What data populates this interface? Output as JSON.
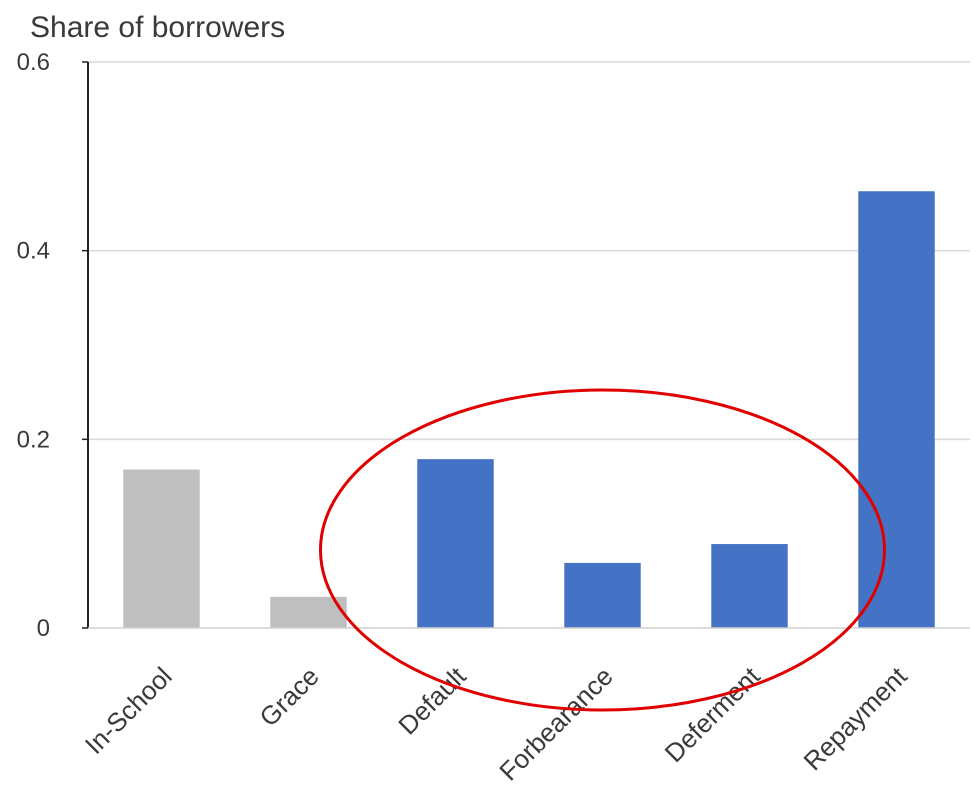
{
  "chart_data": {
    "type": "bar",
    "title": "",
    "ylabel": "Share of borrowers",
    "xlabel": "",
    "ylim": [
      0,
      0.6
    ],
    "yticks": [
      "0",
      "0.2",
      "0.4",
      "0.6"
    ],
    "ytick_values": [
      0,
      0.2,
      0.4,
      0.6
    ],
    "grid": true,
    "categories": [
      "In-School",
      "Grace",
      "Default",
      "Forbearance",
      "Deferment",
      "Repayment"
    ],
    "values": [
      0.168,
      0.033,
      0.179,
      0.069,
      0.089,
      0.463
    ],
    "bar_colors": [
      "#bfbfbf",
      "#bfbfbf",
      "#4472c4",
      "#4472c4",
      "#4472c4",
      "#4472c4"
    ],
    "annotation": {
      "shape": "ellipse",
      "color": "#e00000",
      "encloses": [
        "Default",
        "Forbearance",
        "Deferment"
      ]
    }
  }
}
